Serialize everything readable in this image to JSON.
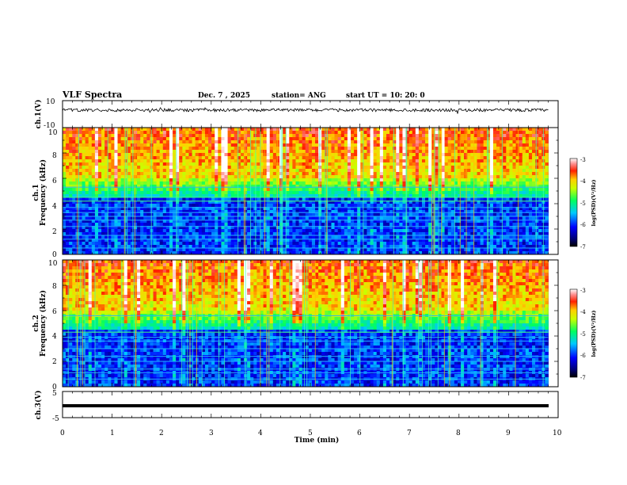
{
  "header": {
    "title": "VLF Spectra",
    "date": "Dec. 7 , 2025",
    "station": "station= ANG",
    "start": "start UT =   10: 20: 0"
  },
  "chart_data": [
    {
      "type": "line",
      "title": "ch.1(V) waveform",
      "ylabel": "ch.1(V)",
      "ylim": [
        -10,
        10
      ],
      "yticks": [
        "10",
        "-10"
      ],
      "xlim": [
        0,
        10
      ],
      "description_level": "noise trace centered near 3 V with spikes",
      "baseline": 3
    },
    {
      "type": "heatmap",
      "title": "ch.1 spectrogram",
      "ylabel": "ch.1\nFrequency (kHz)",
      "ylabel_line1": "ch.1",
      "ylabel_line2": "Frequency (kHz)",
      "ylim": [
        0,
        10
      ],
      "yticks": [
        "0",
        "2",
        "4",
        "6",
        "8",
        "10"
      ],
      "xlim": [
        0,
        9.8
      ],
      "colorbar": {
        "label": "log(PSD)(V²/Hz)",
        "ticks": [
          "-3",
          "-4",
          "-5",
          "-6",
          "-7"
        ],
        "range": [
          -7,
          -3
        ]
      }
    },
    {
      "type": "heatmap",
      "title": "ch.2 spectrogram",
      "ylabel": "ch.2\nFrequency (kHz)",
      "ylabel_line1": "ch.2",
      "ylabel_line2": "Frequency (kHz)",
      "ylim": [
        0,
        10
      ],
      "yticks": [
        "0",
        "2",
        "4",
        "6",
        "8",
        "10"
      ],
      "xlim": [
        0,
        9.8
      ],
      "colorbar": {
        "label": "log(PSD)(V²/Hz)",
        "ticks": [
          "-3",
          "-4",
          "-5",
          "-6",
          "-7"
        ],
        "range": [
          -7,
          -3
        ]
      }
    },
    {
      "type": "line",
      "title": "ch.3(V) waveform",
      "ylabel": "ch.3(V)",
      "ylim": [
        -5,
        5
      ],
      "yticks": [
        "5",
        "-1",
        "-5"
      ],
      "xlim": [
        0,
        10
      ],
      "baseline": -1
    }
  ],
  "xaxis": {
    "label": "Time (min)",
    "ticks": [
      "0",
      "1",
      "2",
      "3",
      "4",
      "5",
      "6",
      "7",
      "8",
      "9",
      "10"
    ]
  }
}
